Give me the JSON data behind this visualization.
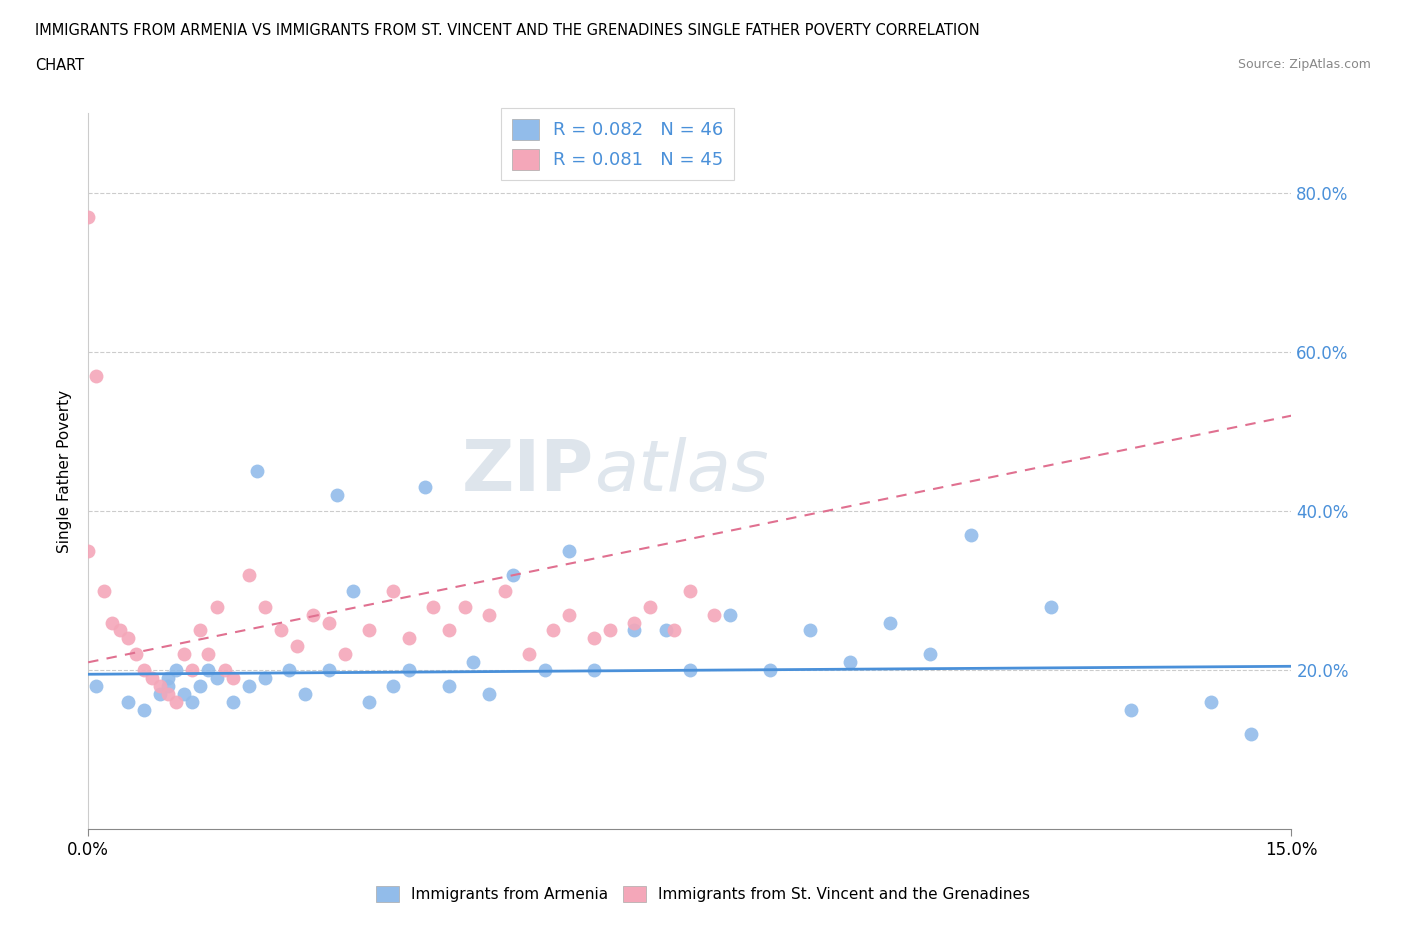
{
  "title_line1": "IMMIGRANTS FROM ARMENIA VS IMMIGRANTS FROM ST. VINCENT AND THE GRENADINES SINGLE FATHER POVERTY CORRELATION",
  "title_line2": "CHART",
  "source": "Source: ZipAtlas.com",
  "ylabel": "Single Father Poverty",
  "xlim": [
    0.0,
    0.15
  ],
  "ylim": [
    0.0,
    0.9
  ],
  "x_tick_labels": [
    "0.0%",
    "15.0%"
  ],
  "y_tick_labels": [
    "20.0%",
    "40.0%",
    "60.0%",
    "80.0%"
  ],
  "y_tick_vals": [
    0.2,
    0.4,
    0.6,
    0.8
  ],
  "color_armenia": "#92bcea",
  "color_stv": "#f4a7b9",
  "line_color_armenia": "#4a90d9",
  "line_color_stv": "#e07090",
  "legend_R_armenia": "0.082",
  "legend_N_armenia": "46",
  "legend_R_stv": "0.081",
  "legend_N_stv": "45",
  "watermark_zip": "ZIP",
  "watermark_atlas": "atlas",
  "armenia_x": [
    0.001,
    0.005,
    0.007,
    0.009,
    0.01,
    0.01,
    0.011,
    0.012,
    0.013,
    0.014,
    0.015,
    0.016,
    0.018,
    0.02,
    0.021,
    0.022,
    0.025,
    0.027,
    0.03,
    0.031,
    0.033,
    0.035,
    0.038,
    0.04,
    0.042,
    0.045,
    0.048,
    0.05,
    0.053,
    0.057,
    0.06,
    0.063,
    0.068,
    0.072,
    0.075,
    0.08,
    0.085,
    0.09,
    0.095,
    0.1,
    0.105,
    0.11,
    0.12,
    0.13,
    0.14,
    0.145
  ],
  "armenia_y": [
    0.18,
    0.16,
    0.15,
    0.17,
    0.18,
    0.19,
    0.2,
    0.17,
    0.16,
    0.18,
    0.2,
    0.19,
    0.16,
    0.18,
    0.45,
    0.19,
    0.2,
    0.17,
    0.2,
    0.42,
    0.3,
    0.16,
    0.18,
    0.2,
    0.43,
    0.18,
    0.21,
    0.17,
    0.32,
    0.2,
    0.35,
    0.2,
    0.25,
    0.25,
    0.2,
    0.27,
    0.2,
    0.25,
    0.21,
    0.26,
    0.22,
    0.37,
    0.28,
    0.15,
    0.16,
    0.12
  ],
  "stv_x": [
    0.0,
    0.0,
    0.001,
    0.002,
    0.003,
    0.004,
    0.005,
    0.006,
    0.007,
    0.008,
    0.009,
    0.01,
    0.011,
    0.012,
    0.013,
    0.014,
    0.015,
    0.016,
    0.017,
    0.018,
    0.02,
    0.022,
    0.024,
    0.026,
    0.028,
    0.03,
    0.032,
    0.035,
    0.038,
    0.04,
    0.043,
    0.045,
    0.047,
    0.05,
    0.052,
    0.055,
    0.058,
    0.06,
    0.063,
    0.065,
    0.068,
    0.07,
    0.073,
    0.075,
    0.078
  ],
  "stv_y": [
    0.77,
    0.35,
    0.57,
    0.3,
    0.26,
    0.25,
    0.24,
    0.22,
    0.2,
    0.19,
    0.18,
    0.17,
    0.16,
    0.22,
    0.2,
    0.25,
    0.22,
    0.28,
    0.2,
    0.19,
    0.32,
    0.28,
    0.25,
    0.23,
    0.27,
    0.26,
    0.22,
    0.25,
    0.3,
    0.24,
    0.28,
    0.25,
    0.28,
    0.27,
    0.3,
    0.22,
    0.25,
    0.27,
    0.24,
    0.25,
    0.26,
    0.28,
    0.25,
    0.3,
    0.27
  ],
  "arm_line_x0": 0.0,
  "arm_line_x1": 0.15,
  "arm_line_y0": 0.195,
  "arm_line_y1": 0.205,
  "stv_line_x0": 0.0,
  "stv_line_x1": 0.15,
  "stv_line_y0": 0.21,
  "stv_line_y1": 0.52
}
